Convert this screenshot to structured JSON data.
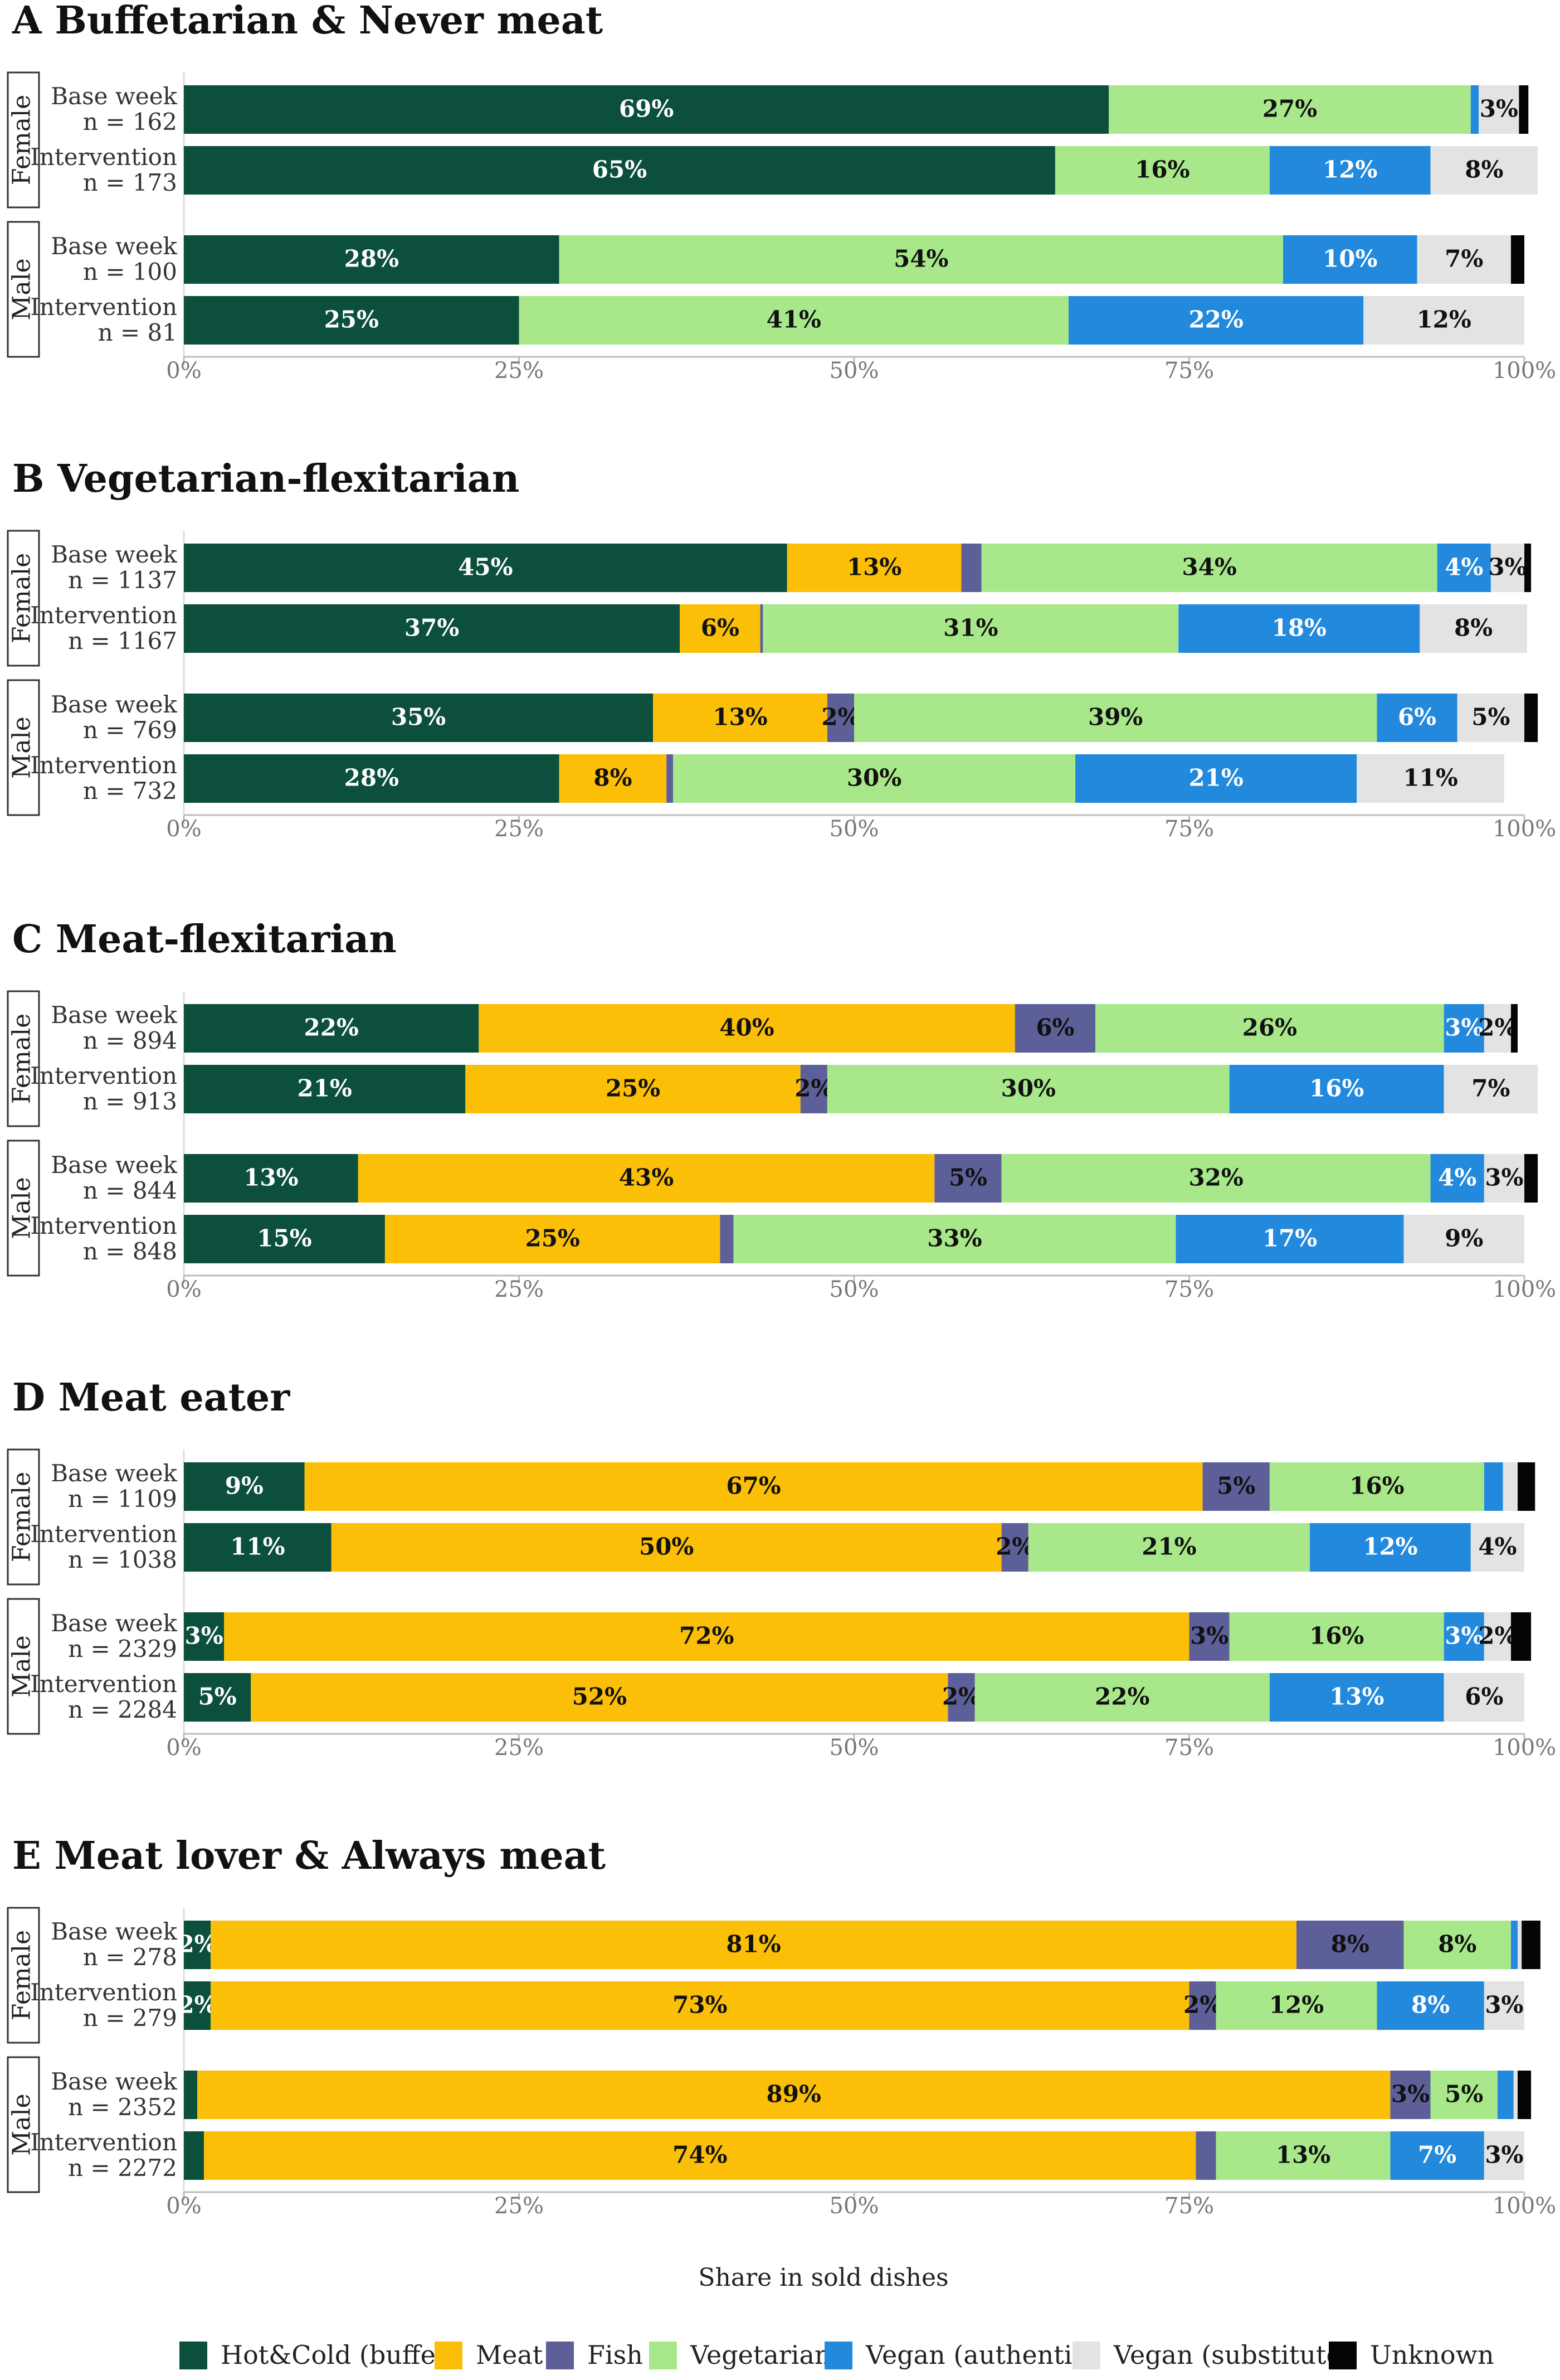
{
  "chart_data": {
    "type": "bar",
    "orientation": "horizontal-stacked",
    "xlabel": "Share in sold dishes",
    "xlim": [
      0,
      100
    ],
    "xticks": [
      "0%",
      "25%",
      "50%",
      "75%",
      "100%"
    ],
    "series_names": [
      "Hot&Cold (buffet)",
      "Meat",
      "Fish",
      "Vegetarian",
      "Vegan (authentic)",
      "Vegan (substitute)",
      "Unknown"
    ],
    "colors": {
      "Hot&Cold (buffet)": "#0b4f3c",
      "Meat": "#fbbf07",
      "Fish": "#5d5f99",
      "Vegetarian": "#a8e88a",
      "Vegan (authentic)": "#2289dc",
      "Vegan (substitute)": "#e3e3e3",
      "Unknown": "#050505"
    },
    "panels": [
      {
        "title": "A Buffetarian & Never meat",
        "groups": [
          {
            "name": "Female",
            "rows": [
              {
                "label": "Base week",
                "n": "n = 162",
                "values": [
                  69,
                  0,
                  0,
                  27,
                  0.6,
                  3,
                  0.7
                ],
                "labels": [
                  "69%",
                  "",
                  "",
                  "27%",
                  "",
                  "3%",
                  ""
                ]
              },
              {
                "label": "Intervention",
                "n": "n = 173",
                "values": [
                  65,
                  0,
                  0,
                  16,
                  12,
                  8,
                  0
                ],
                "labels": [
                  "65%",
                  "",
                  "",
                  "16%",
                  "12%",
                  "8%",
                  ""
                ]
              }
            ]
          },
          {
            "name": "Male",
            "rows": [
              {
                "label": "Base week",
                "n": "n = 100",
                "values": [
                  28,
                  0,
                  0,
                  54,
                  10,
                  7,
                  1
                ],
                "labels": [
                  "28%",
                  "",
                  "",
                  "54%",
                  "10%",
                  "7%",
                  ""
                ]
              },
              {
                "label": "Intervention",
                "n": "n = 81",
                "values": [
                  25,
                  0,
                  0,
                  41,
                  22,
                  12,
                  0
                ],
                "labels": [
                  "25%",
                  "",
                  "",
                  "41%",
                  "22%",
                  "12%",
                  ""
                ]
              }
            ]
          }
        ]
      },
      {
        "title": "B Vegetarian-flexitarian",
        "groups": [
          {
            "name": "Female",
            "rows": [
              {
                "label": "Base week",
                "n": "n = 1137",
                "values": [
                  45,
                  13,
                  1.5,
                  34,
                  4,
                  2.5,
                  0.5
                ],
                "labels": [
                  "45%",
                  "13%",
                  "",
                  "34%",
                  "4%",
                  "3%",
                  ""
                ]
              },
              {
                "label": "Intervention",
                "n": "n = 1167",
                "values": [
                  37,
                  6,
                  0.2,
                  31,
                  18,
                  8,
                  0
                ],
                "labels": [
                  "37%",
                  "6%",
                  "",
                  "31%",
                  "18%",
                  "8%",
                  ""
                ]
              }
            ]
          },
          {
            "name": "Male",
            "rows": [
              {
                "label": "Base week",
                "n": "n = 769",
                "values": [
                  35,
                  13,
                  2,
                  39,
                  6,
                  5,
                  1
                ],
                "labels": [
                  "35%",
                  "13%",
                  "2%",
                  "39%",
                  "6%",
                  "5%",
                  ""
                ]
              },
              {
                "label": "Intervention",
                "n": "n = 732",
                "values": [
                  28,
                  8,
                  0.5,
                  30,
                  21,
                  11,
                  0
                ],
                "labels": [
                  "28%",
                  "8%",
                  "",
                  "30%",
                  "21%",
                  "11%",
                  ""
                ]
              }
            ]
          }
        ]
      },
      {
        "title": "C Meat-flexitarian",
        "groups": [
          {
            "name": "Female",
            "rows": [
              {
                "label": "Base week",
                "n": "n = 894",
                "values": [
                  22,
                  40,
                  6,
                  26,
                  3,
                  2,
                  0.5
                ],
                "labels": [
                  "22%",
                  "40%",
                  "6%",
                  "26%",
                  "3%",
                  "2%",
                  ""
                ]
              },
              {
                "label": "Intervention",
                "n": "n = 913",
                "values": [
                  21,
                  25,
                  2,
                  30,
                  16,
                  7,
                  0
                ],
                "labels": [
                  "21%",
                  "25%",
                  "2%",
                  "30%",
                  "16%",
                  "7%",
                  ""
                ]
              }
            ]
          },
          {
            "name": "Male",
            "rows": [
              {
                "label": "Base week",
                "n": "n = 844",
                "values": [
                  13,
                  43,
                  5,
                  32,
                  4,
                  3,
                  1
                ],
                "labels": [
                  "13%",
                  "43%",
                  "5%",
                  "32%",
                  "4%",
                  "3%",
                  ""
                ]
              },
              {
                "label": "Intervention",
                "n": "n = 848",
                "values": [
                  15,
                  25,
                  1,
                  33,
                  17,
                  9,
                  0
                ],
                "labels": [
                  "15%",
                  "25%",
                  "",
                  "33%",
                  "17%",
                  "9%",
                  ""
                ]
              }
            ]
          }
        ]
      },
      {
        "title": "D Meat eater",
        "groups": [
          {
            "name": "Female",
            "rows": [
              {
                "label": "Base week",
                "n": "n = 1109",
                "values": [
                  9,
                  67,
                  5,
                  16,
                  1.4,
                  1.1,
                  1.3
                ],
                "labels": [
                  "9%",
                  "67%",
                  "5%",
                  "16%",
                  "",
                  "",
                  ""
                ]
              },
              {
                "label": "Intervention",
                "n": "n = 1038",
                "values": [
                  11,
                  50,
                  2,
                  21,
                  12,
                  4,
                  0
                ],
                "labels": [
                  "11%",
                  "50%",
                  "2%",
                  "21%",
                  "12%",
                  "4%",
                  ""
                ]
              }
            ]
          },
          {
            "name": "Male",
            "rows": [
              {
                "label": "Base week",
                "n": "n = 2329",
                "values": [
                  3,
                  72,
                  3,
                  16,
                  3,
                  2,
                  1.5
                ],
                "labels": [
                  "3%",
                  "72%",
                  "3%",
                  "16%",
                  "3%",
                  "2%",
                  ""
                ]
              },
              {
                "label": "Intervention",
                "n": "n = 2284",
                "values": [
                  5,
                  52,
                  2,
                  22,
                  13,
                  6,
                  0
                ],
                "labels": [
                  "5%",
                  "52%",
                  "2%",
                  "22%",
                  "13%",
                  "6%",
                  ""
                ]
              }
            ]
          }
        ]
      },
      {
        "title": "E Meat lover & Always meat",
        "groups": [
          {
            "name": "Female",
            "rows": [
              {
                "label": "Base week",
                "n": "n = 278",
                "values": [
                  2,
                  81,
                  8,
                  8,
                  0.5,
                  0.3,
                  1.4
                ],
                "labels": [
                  "2%",
                  "81%",
                  "8%",
                  "8%",
                  "",
                  "",
                  ""
                ]
              },
              {
                "label": "Intervention",
                "n": "n = 279",
                "values": [
                  2,
                  73,
                  2,
                  12,
                  8,
                  3,
                  0
                ],
                "labels": [
                  "2%",
                  "73%",
                  "2%",
                  "12%",
                  "8%",
                  "3%",
                  ""
                ]
              }
            ]
          },
          {
            "name": "Male",
            "rows": [
              {
                "label": "Base week",
                "n": "n = 2352",
                "values": [
                  1,
                  89,
                  3,
                  5,
                  1.2,
                  0.3,
                  1
                ],
                "labels": [
                  "",
                  "89%",
                  "3%",
                  "5%",
                  "",
                  "",
                  ""
                ]
              },
              {
                "label": "Intervention",
                "n": "n = 2272",
                "values": [
                  1.5,
                  74,
                  1.5,
                  13,
                  7,
                  3,
                  0
                ],
                "labels": [
                  "",
                  "74%",
                  "",
                  "13%",
                  "7%",
                  "3%",
                  ""
                ]
              }
            ]
          }
        ]
      }
    ]
  }
}
